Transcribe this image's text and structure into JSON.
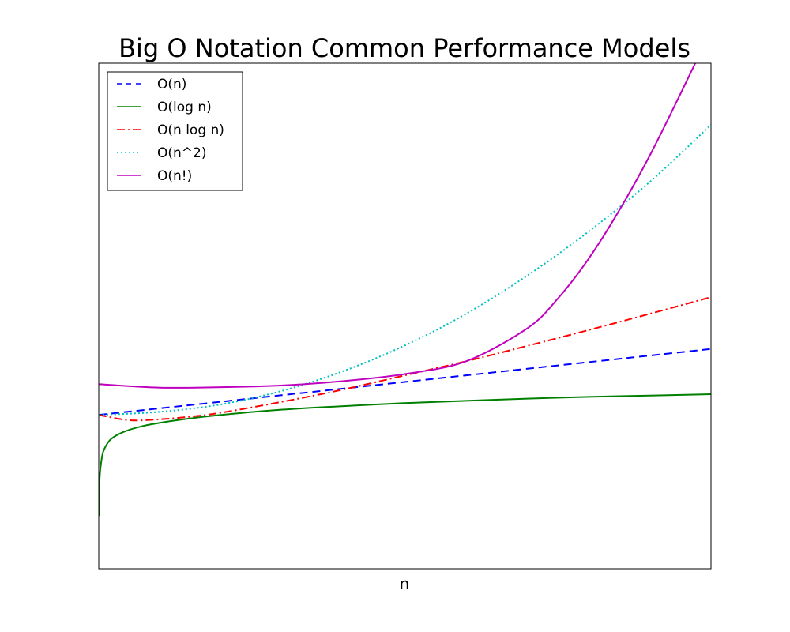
{
  "chart_data": {
    "type": "line",
    "title": "Big O Notation Common Performance Models",
    "xlabel": "n",
    "ylabel": "",
    "xlim": [
      0,
      100
    ],
    "ylim": [
      -3.5,
      8
    ],
    "grid": false,
    "x_ticks_shown": false,
    "y_ticks_shown": false,
    "legend_location": "upper left",
    "series": [
      {
        "name": "O(n)",
        "color": "#0000ff",
        "style": "dashed",
        "x": [
          0,
          10,
          20,
          30,
          40,
          50,
          60,
          70,
          80,
          90,
          100
        ],
        "y": [
          0.0,
          0.15,
          0.3,
          0.45,
          0.6,
          0.75,
          0.9,
          1.05,
          1.2,
          1.35,
          1.5
        ]
      },
      {
        "name": "O(log n)",
        "color": "#008000",
        "style": "solid",
        "x": [
          0,
          0.1,
          0.5,
          1,
          2,
          4,
          7,
          10,
          15,
          20,
          30,
          40,
          50,
          60,
          70,
          80,
          90,
          100
        ],
        "y": [
          -2.3,
          -1.53,
          -0.98,
          -0.75,
          -0.55,
          -0.39,
          -0.26,
          -0.18,
          -0.08,
          0.0,
          0.12,
          0.2,
          0.27,
          0.32,
          0.37,
          0.41,
          0.44,
          0.47
        ]
      },
      {
        "name": "O(n log n)",
        "color": "#ff0000",
        "style": "dashdot",
        "x": [
          0,
          5,
          10,
          15,
          20,
          30,
          40,
          50,
          60,
          70,
          80,
          90,
          100
        ],
        "y": [
          0.0,
          -0.12,
          -0.1,
          -0.04,
          0.05,
          0.3,
          0.58,
          0.9,
          1.22,
          1.57,
          1.93,
          2.3,
          2.68
        ]
      },
      {
        "name": "O(n^2)",
        "color": "#00bfbf",
        "style": "dotted",
        "x": [
          0,
          10,
          20,
          30,
          40,
          50,
          60,
          70,
          80,
          90,
          100
        ],
        "y": [
          0.0,
          0.07,
          0.24,
          0.55,
          1.0,
          1.58,
          2.3,
          3.17,
          4.17,
          5.3,
          6.6
        ]
      },
      {
        "name": "O(n!)",
        "color": "#bf00bf",
        "style": "solid",
        "x": [
          0,
          10,
          20,
          30,
          40,
          50,
          60,
          70,
          75,
          80,
          85,
          90,
          95,
          100
        ],
        "y": [
          0.7,
          0.62,
          0.63,
          0.67,
          0.77,
          0.93,
          1.22,
          1.97,
          2.65,
          3.55,
          4.65,
          5.9,
          7.3,
          8.75
        ]
      }
    ]
  }
}
